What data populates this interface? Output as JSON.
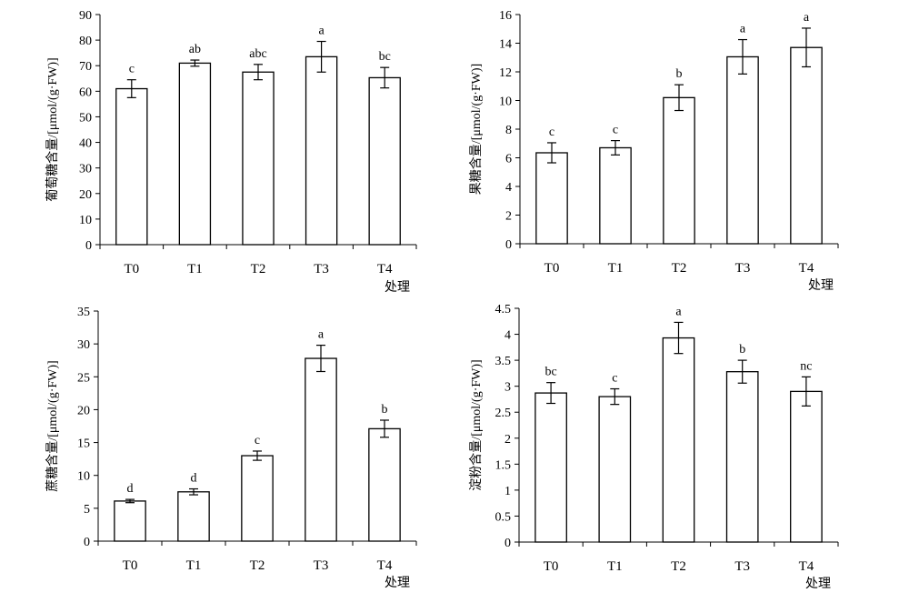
{
  "chart_data": [
    {
      "type": "bar",
      "categories": [
        "T0",
        "T1",
        "T2",
        "T3",
        "T4"
      ],
      "values": [
        61,
        71,
        67.5,
        73.5,
        65.3
      ],
      "errors": [
        3.5,
        1.2,
        3.0,
        6.0,
        4.0
      ],
      "significance": [
        "c",
        "ab",
        "abc",
        "a",
        "bc"
      ],
      "ylabel": "葡萄糖含量/[μmol/(g·FW)]",
      "xlabel": "处理",
      "ylim": [
        0,
        90
      ],
      "yticks": [
        "0",
        "10",
        "20",
        "30",
        "40",
        "50",
        "60",
        "70",
        "80",
        "90"
      ],
      "grid": false
    },
    {
      "type": "bar",
      "categories": [
        "T0",
        "T1",
        "T2",
        "T3",
        "T4"
      ],
      "values": [
        6.35,
        6.7,
        10.2,
        13.05,
        13.7
      ],
      "errors": [
        0.7,
        0.5,
        0.9,
        1.2,
        1.35
      ],
      "significance": [
        "c",
        "c",
        "b",
        "a",
        "a"
      ],
      "ylabel": "果糖含量/[μmol/(g·FW)]",
      "xlabel": "处理",
      "ylim": [
        0,
        16
      ],
      "yticks": [
        "0",
        "2",
        "4",
        "6",
        "8",
        "10",
        "12",
        "14",
        "16"
      ],
      "grid": false
    },
    {
      "type": "bar",
      "categories": [
        "T0",
        "T1",
        "T2",
        "T3",
        "T4"
      ],
      "values": [
        6.1,
        7.5,
        13.0,
        27.8,
        17.1
      ],
      "errors": [
        0.25,
        0.45,
        0.7,
        2.0,
        1.3
      ],
      "significance": [
        "d",
        "d",
        "c",
        "a",
        "b"
      ],
      "ylabel": "蔗糖含量/[μmol/(g·FW)]",
      "xlabel": "处理",
      "ylim": [
        0,
        35
      ],
      "yticks": [
        "0",
        "5",
        "10",
        "15",
        "20",
        "25",
        "30",
        "35"
      ],
      "grid": false
    },
    {
      "type": "bar",
      "categories": [
        "T0",
        "T1",
        "T2",
        "T3",
        "T4"
      ],
      "values": [
        2.87,
        2.8,
        3.93,
        3.28,
        2.9
      ],
      "errors": [
        0.2,
        0.15,
        0.3,
        0.22,
        0.28
      ],
      "significance": [
        "bc",
        "c",
        "a",
        "b",
        "nc"
      ],
      "ylabel": "淀粉含量/[μmol/(g·FW)]",
      "xlabel": "处理",
      "ylim": [
        0,
        4.5
      ],
      "yticks": [
        "0",
        "0.5",
        "1",
        "1.5",
        "2",
        "2.5",
        "3",
        "3.5",
        "4",
        "4.5"
      ],
      "grid": false
    }
  ]
}
